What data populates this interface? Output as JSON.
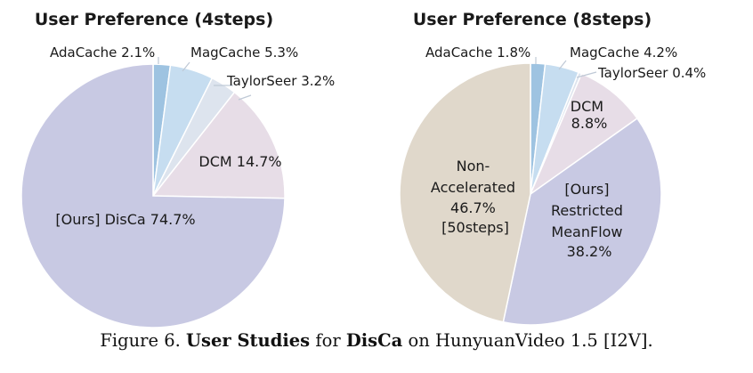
{
  "chart_data": [
    {
      "type": "pie",
      "title": "User Preference (4steps)",
      "slices": [
        {
          "label": "AdaCache",
          "value": 2.1,
          "color": "#9ec3e1"
        },
        {
          "label": "MagCache",
          "value": 5.3,
          "color": "#c6ddf0"
        },
        {
          "label": "TaylorSeer",
          "value": 3.2,
          "color": "#dde4ee"
        },
        {
          "label": "DCM",
          "value": 14.7,
          "color": "#e7dde7"
        },
        {
          "label": "[Ours] DisCa",
          "value": 74.7,
          "color": "#c8c9e3"
        }
      ],
      "slice_labels": [
        {
          "name": "AdaCache",
          "value": "2.1%"
        },
        {
          "name": "MagCache",
          "value": "5.3%"
        },
        {
          "name": "TaylorSeer",
          "value": "3.2%"
        },
        {
          "name": "DCM",
          "value": "14.7%"
        },
        {
          "name": "[Ours] DisCa",
          "value": "74.7%"
        }
      ]
    },
    {
      "type": "pie",
      "title": "User Preference (8steps)",
      "slices": [
        {
          "label": "AdaCache",
          "value": 1.8,
          "color": "#9ec3e1"
        },
        {
          "label": "MagCache",
          "value": 4.2,
          "color": "#c6ddf0"
        },
        {
          "label": "TaylorSeer",
          "value": 0.4,
          "color": "#dde4ee"
        },
        {
          "label": "DCM",
          "value": 8.8,
          "color": "#e7dde7"
        },
        {
          "label": "[Ours] Restricted MeanFlow",
          "value": 38.2,
          "color": "#c8c9e3"
        },
        {
          "label": "Non-Accelerated [50steps]",
          "value": 46.7,
          "color": "#e0d8cb"
        }
      ],
      "slice_labels": [
        {
          "name": "AdaCache",
          "value": "1.8%"
        },
        {
          "name": "MagCache",
          "value": "4.2%"
        },
        {
          "name": "TaylorSeer",
          "value": "0.4%"
        },
        {
          "name": "DCM",
          "value": "8.8%"
        },
        {
          "lines": [
            "[Ours]",
            "Restricted",
            "MeanFlow"
          ],
          "value": "38.2%"
        },
        {
          "lines": [
            "Non-",
            "Accelerated"
          ],
          "value": "46.7%",
          "extra": "[50steps]"
        }
      ]
    }
  ],
  "caption": {
    "prefix": "Figure 6. ",
    "bold1": "User Studies",
    "mid": " for ",
    "bold2": "DisCa",
    "suffix": " on HunyuanVideo 1.5 [I2V]."
  }
}
